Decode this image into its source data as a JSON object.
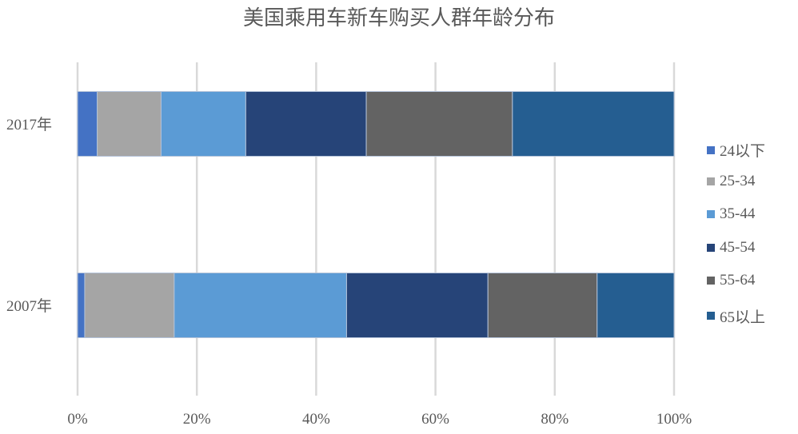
{
  "chart_data": {
    "type": "bar",
    "orientation": "horizontal",
    "stacked": "percent",
    "title": "美国乘用车新车购买人群年龄分布",
    "categories": [
      "2017年",
      "2007年"
    ],
    "series": [
      {
        "name": "24以下",
        "color": "#4472C4",
        "values": [
          3.3,
          1.2
        ]
      },
      {
        "name": "25-34",
        "color": "#A5A5A5",
        "values": [
          10.7,
          15.0
        ]
      },
      {
        "name": "35-44",
        "color": "#5B9BD5",
        "values": [
          14.2,
          28.9
        ]
      },
      {
        "name": "45-54",
        "color": "#264478",
        "values": [
          20.2,
          23.7
        ]
      },
      {
        "name": "55-64",
        "color": "#636363",
        "values": [
          24.5,
          18.3
        ]
      },
      {
        "name": "65以上",
        "color": "#255E91",
        "values": [
          27.1,
          12.9
        ]
      }
    ],
    "xticks": [
      "0%",
      "20%",
      "40%",
      "60%",
      "80%",
      "100%"
    ],
    "xlim": [
      0,
      100
    ],
    "grid": "vertical",
    "legend": "right"
  }
}
